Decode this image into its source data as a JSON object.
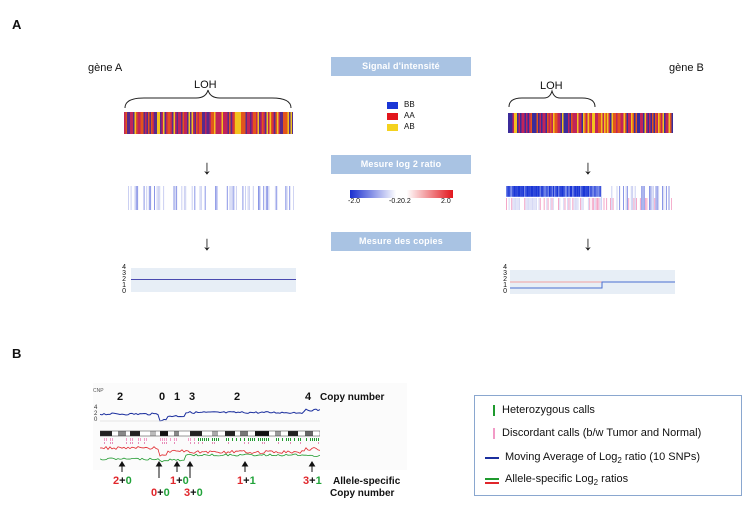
{
  "panel_a": {
    "label": "A",
    "gene_a": "gène A",
    "gene_b": "gène B",
    "loh": "LOH",
    "steps": [
      "Signal d'intensité",
      "Mesure log 2 ratio",
      "Mesure des copies"
    ],
    "genotype_legend": [
      {
        "label": "BB",
        "color": "#1a36d6"
      },
      {
        "label": "AA",
        "color": "#e2161d"
      },
      {
        "label": "AB",
        "color": "#f4d21e"
      }
    ],
    "ratio_scale_ticks": [
      "-2.0",
      "-0.2",
      "0.2",
      "2.0"
    ],
    "copy_axis_ticks": [
      "4",
      "3",
      "2",
      "1",
      "0"
    ]
  },
  "panel_b": {
    "label": "B",
    "cnp_label": "CNP",
    "y_ticks": [
      "4",
      "2",
      "0"
    ],
    "copy_numbers": [
      "2",
      "0",
      "1",
      "3",
      "2",
      "4"
    ],
    "copy_number_title": "Copy number",
    "allele_specific": [
      {
        "a": "2",
        "b": "0"
      },
      {
        "a": "0",
        "b": "0"
      },
      {
        "a": "1",
        "b": "0"
      },
      {
        "a": "3",
        "b": "0"
      },
      {
        "a": "1",
        "b": "1"
      },
      {
        "a": "3",
        "b": "1"
      }
    ],
    "allele_title_1": "Allele-specific",
    "allele_title_2": "Copy number"
  },
  "legend": {
    "heterozygous": "Heterozygous calls",
    "discordant": "Discordant calls (b/w Tumor and Normal)",
    "moving_average_pre": "Moving Average of Log",
    "moving_average_sub": "2",
    "moving_average_post": " ratio (10 SNPs)",
    "allele_ratio_pre": "Allele-specific Log",
    "allele_ratio_sub": "2",
    "allele_ratio_post": " ratios",
    "colors": {
      "green": "#1f9a2e",
      "pink": "#f29bc7",
      "blue": "#1b2f9e",
      "red": "#e0262b"
    }
  }
}
